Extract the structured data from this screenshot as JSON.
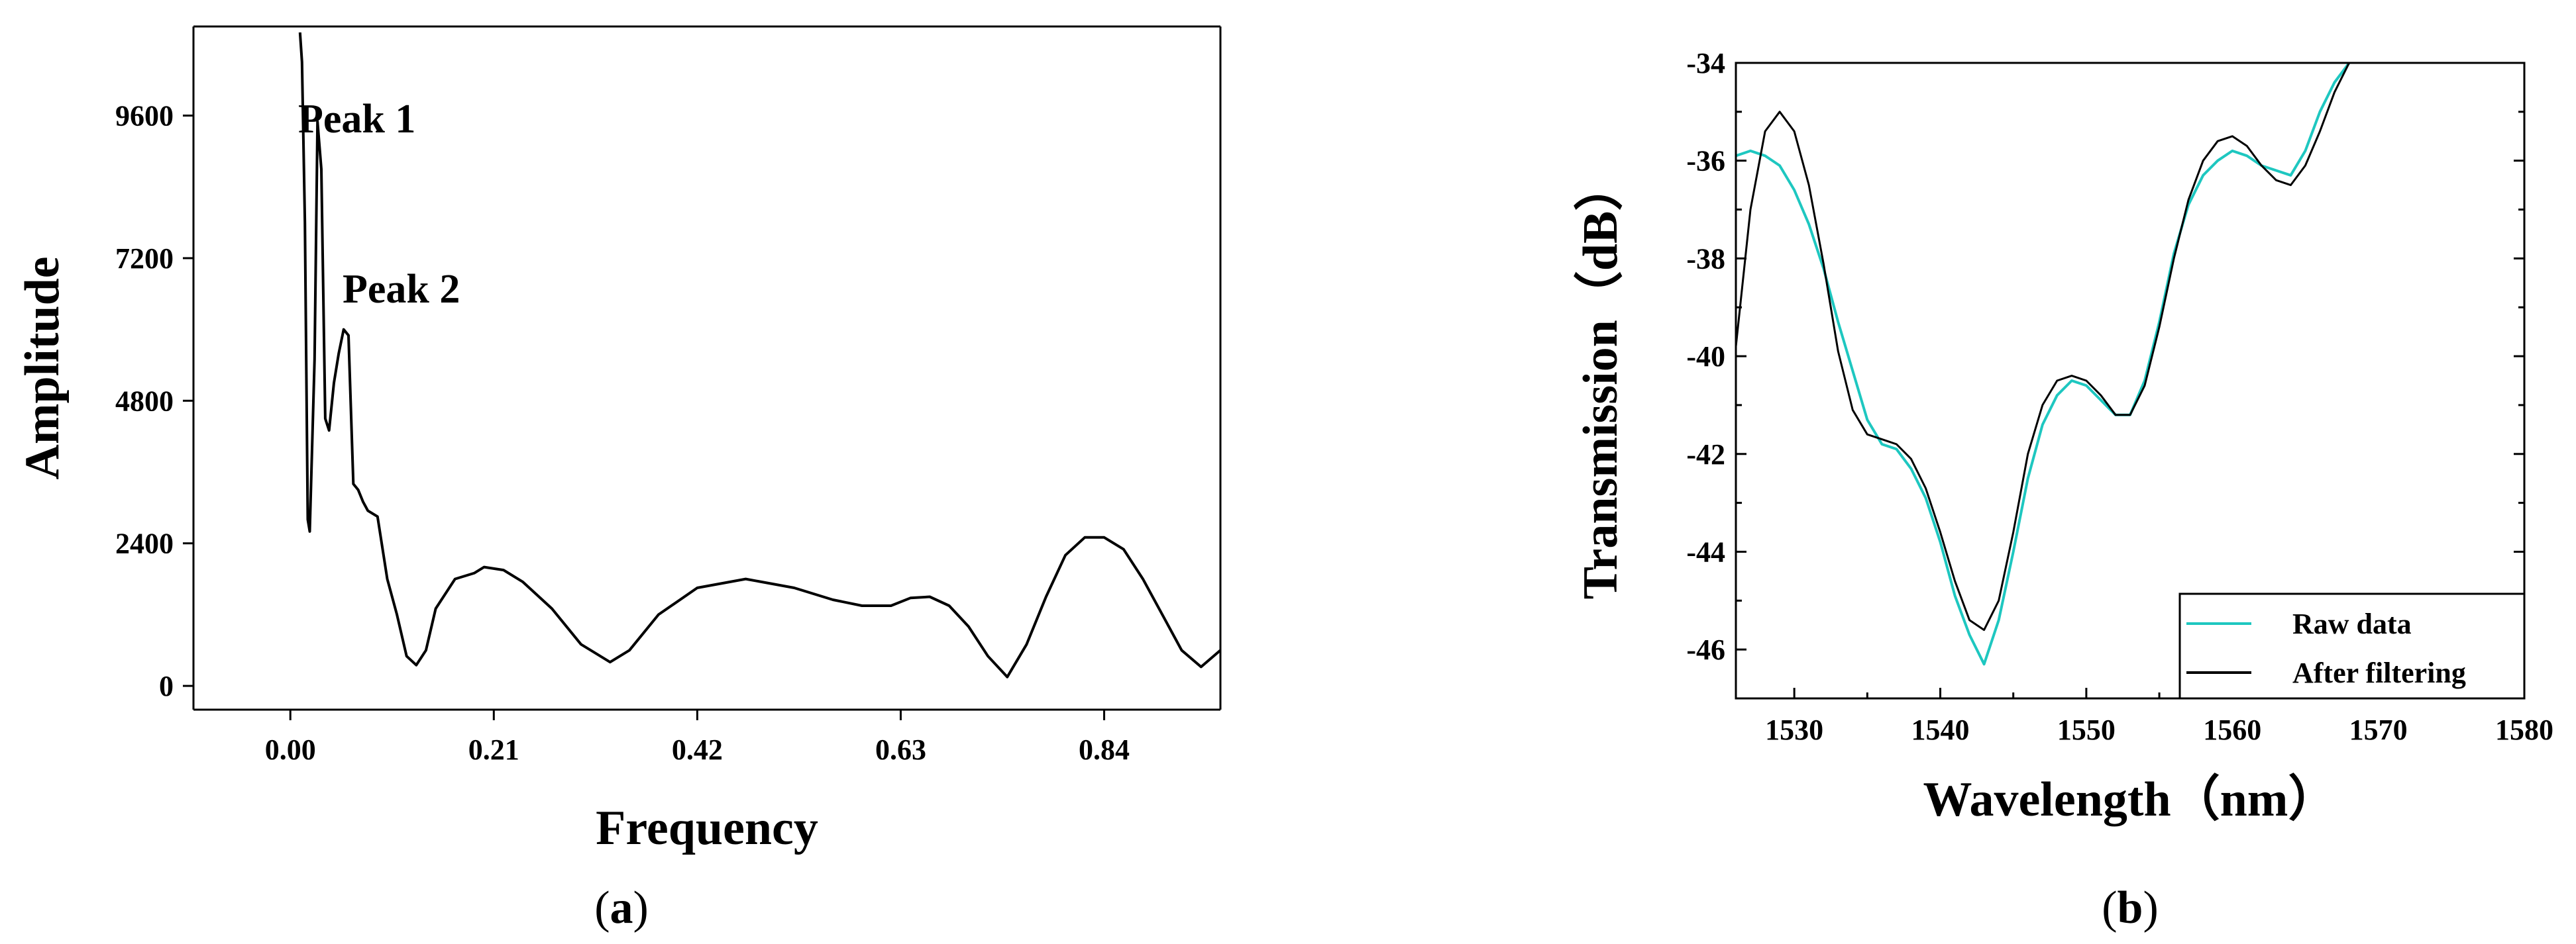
{
  "charts": {
    "a": {
      "caption_open": "(",
      "caption_letter": "a",
      "caption_close": ")",
      "xlabel": "Frequency",
      "ylabel": "Amplitude",
      "annotations": [
        "Peak 1",
        "Peak 2"
      ],
      "xticks": [
        "0.00",
        "0.21",
        "0.42",
        "0.63",
        "0.84"
      ],
      "yticks": [
        "0",
        "2400",
        "4800",
        "7200",
        "9600"
      ]
    },
    "b": {
      "caption_open": "(",
      "caption_letter": "b",
      "caption_close": ")",
      "xlabel": "Wavelength（nm）",
      "ylabel": "Transmission（dB）",
      "xticks": [
        "1530",
        "1540",
        "1550",
        "1560",
        "1570",
        "1580"
      ],
      "yticks": [
        "-46",
        "-44",
        "-42",
        "-40",
        "-38",
        "-36",
        "-34"
      ],
      "legend": [
        "Raw data",
        "After filtering"
      ]
    }
  },
  "chart_data": [
    {
      "type": "line",
      "xlabel": "Frequency",
      "ylabel": "Amplitude",
      "xlim": [
        -0.1,
        0.96
      ],
      "ylim": [
        -400,
        11100
      ],
      "xticks": [
        0.0,
        0.21,
        0.42,
        0.63,
        0.84
      ],
      "yticks": [
        0,
        2400,
        4800,
        7200,
        9600
      ],
      "grid": false,
      "annotations": [
        {
          "text": "Peak 1",
          "x": 0.03,
          "y": 9600
        },
        {
          "text": "Peak 2",
          "x": 0.06,
          "y": 6900
        }
      ],
      "series": [
        {
          "color": "#000000",
          "x": [
            0.01,
            0.012,
            0.015,
            0.018,
            0.02,
            0.025,
            0.028,
            0.032,
            0.036,
            0.04,
            0.045,
            0.05,
            0.055,
            0.06,
            0.065,
            0.07,
            0.075,
            0.08,
            0.09,
            0.1,
            0.11,
            0.12,
            0.13,
            0.14,
            0.15,
            0.17,
            0.19,
            0.2,
            0.22,
            0.24,
            0.27,
            0.3,
            0.33,
            0.35,
            0.38,
            0.42,
            0.47,
            0.52,
            0.56,
            0.59,
            0.62,
            0.64,
            0.66,
            0.68,
            0.7,
            0.72,
            0.74,
            0.76,
            0.78,
            0.8,
            0.82,
            0.84,
            0.86,
            0.88,
            0.9,
            0.92,
            0.94,
            0.96
          ],
          "y": [
            11000,
            10500,
            7800,
            2800,
            2600,
            5500,
            9500,
            8700,
            4500,
            4300,
            5100,
            5600,
            6000,
            5900,
            3400,
            3300,
            3100,
            2950,
            2850,
            1800,
            1200,
            500,
            350,
            600,
            1300,
            1800,
            1900,
            2000,
            1950,
            1750,
            1300,
            700,
            400,
            600,
            1200,
            1650,
            1800,
            1650,
            1450,
            1350,
            1350,
            1480,
            1500,
            1350,
            1000,
            500,
            150,
            700,
            1500,
            2200,
            2500,
            2500,
            2300,
            1800,
            1200,
            600,
            320,
            600
          ]
        }
      ]
    },
    {
      "type": "line",
      "xlabel": "Wavelength（nm）",
      "ylabel": "Transmission（dB）",
      "xlim": [
        1526,
        1580
      ],
      "ylim": [
        -47,
        -34
      ],
      "xticks": [
        1530,
        1540,
        1550,
        1560,
        1570,
        1580
      ],
      "yticks": [
        -46,
        -44,
        -42,
        -40,
        -38,
        -36,
        -34
      ],
      "grid": false,
      "legend_position": "bottom-right",
      "series": [
        {
          "name": "Raw data",
          "color": "#1ec7c0",
          "x": [
            1526,
            1527,
            1528,
            1529,
            1530,
            1531,
            1532,
            1533,
            1534,
            1535,
            1536,
            1537,
            1538,
            1539,
            1540,
            1541,
            1542,
            1543,
            1544,
            1545,
            1546,
            1547,
            1548,
            1549,
            1550,
            1551,
            1552,
            1553,
            1554,
            1555,
            1556,
            1557,
            1558,
            1559,
            1560,
            1561,
            1562,
            1563,
            1564,
            1565,
            1566,
            1567,
            1568
          ],
          "y": [
            -35.9,
            -35.8,
            -35.9,
            -36.1,
            -36.6,
            -37.3,
            -38.2,
            -39.3,
            -40.3,
            -41.3,
            -41.8,
            -41.9,
            -42.3,
            -42.9,
            -43.8,
            -44.9,
            -45.7,
            -46.3,
            -45.4,
            -44.0,
            -42.5,
            -41.4,
            -40.8,
            -40.5,
            -40.6,
            -40.9,
            -41.2,
            -41.2,
            -40.5,
            -39.3,
            -37.9,
            -36.9,
            -36.3,
            -36.0,
            -35.8,
            -35.9,
            -36.1,
            -36.2,
            -36.3,
            -35.8,
            -35.0,
            -34.4,
            -34.0
          ]
        },
        {
          "name": "After filtering",
          "color": "#000000",
          "x": [
            1526,
            1527,
            1528,
            1529,
            1530,
            1531,
            1532,
            1533,
            1534,
            1535,
            1536,
            1537,
            1538,
            1539,
            1540,
            1541,
            1542,
            1543,
            1544,
            1545,
            1546,
            1547,
            1548,
            1549,
            1550,
            1551,
            1552,
            1553,
            1554,
            1555,
            1556,
            1557,
            1558,
            1559,
            1560,
            1561,
            1562,
            1563,
            1564,
            1565,
            1566,
            1567,
            1568
          ],
          "y": [
            -39.8,
            -37.0,
            -35.4,
            -35.0,
            -35.4,
            -36.5,
            -38.1,
            -39.9,
            -41.1,
            -41.6,
            -41.7,
            -41.8,
            -42.1,
            -42.7,
            -43.6,
            -44.6,
            -45.4,
            -45.6,
            -45.0,
            -43.6,
            -42.0,
            -41.0,
            -40.5,
            -40.4,
            -40.5,
            -40.8,
            -41.2,
            -41.2,
            -40.6,
            -39.4,
            -38.0,
            -36.8,
            -36.0,
            -35.6,
            -35.5,
            -35.7,
            -36.1,
            -36.4,
            -36.5,
            -36.1,
            -35.4,
            -34.6,
            -34.0
          ]
        }
      ]
    }
  ]
}
